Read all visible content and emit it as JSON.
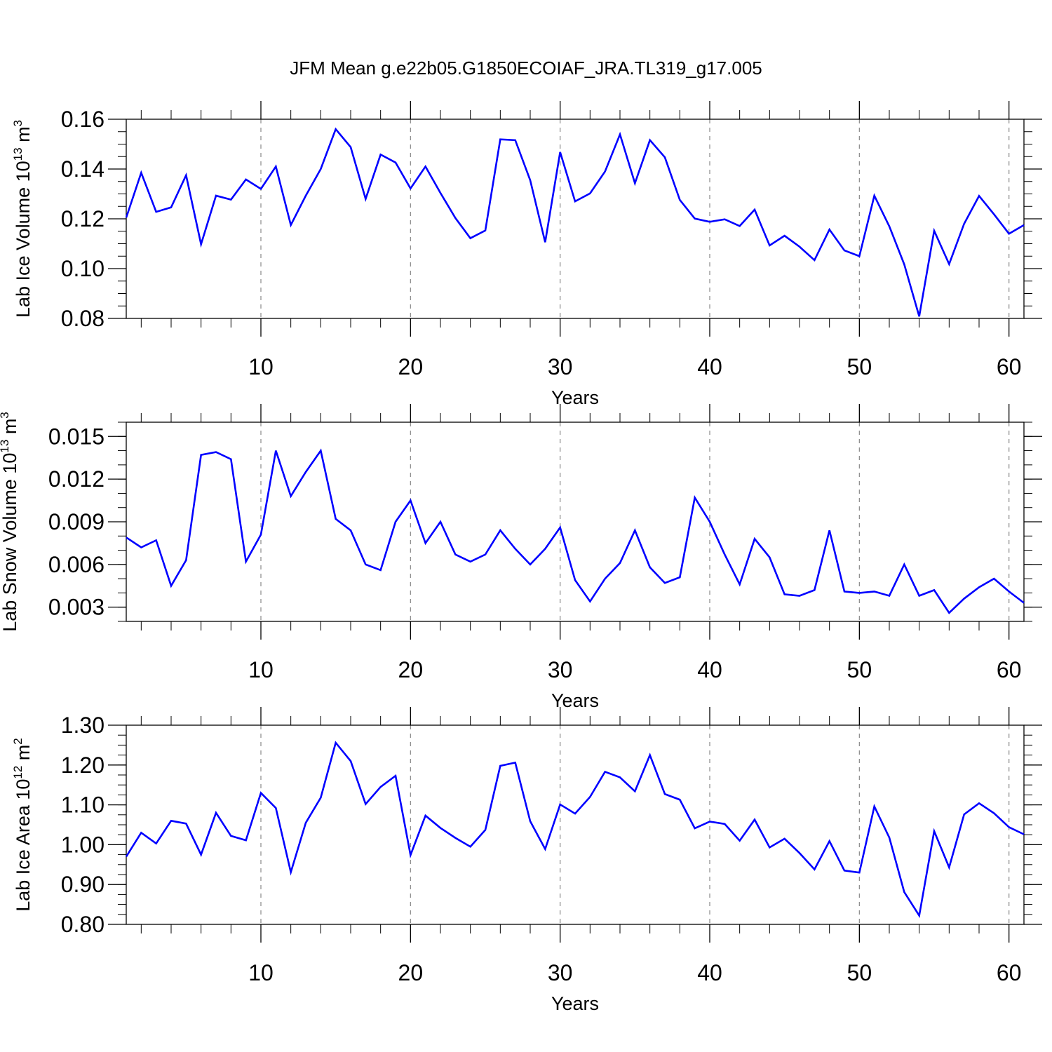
{
  "chart_data": [
    {
      "type": "line",
      "title": "JFM Mean g.e22b05.G1850ECOIAF_JRA.TL319_g17.005",
      "xlabel": "Years",
      "ylabel": {
        "prefix": "Lab Ice Volume 10",
        "exp": "13",
        "unit": "m",
        "unit_exp": "3"
      },
      "xlim": [
        1,
        61
      ],
      "ylim": [
        0.08,
        0.16
      ],
      "x_ticks": [
        10,
        20,
        30,
        40,
        50,
        60
      ],
      "x_tick_labels": [
        "10",
        "20",
        "30",
        "40",
        "50",
        "60"
      ],
      "y_ticks": [
        0.08,
        0.1,
        0.12,
        0.14,
        0.16
      ],
      "y_tick_labels": [
        "0.08",
        "0.10",
        "0.12",
        "0.14",
        "0.16"
      ],
      "y_minor_step": 0.005,
      "grid": "vertical dashed at major x ticks",
      "line_color": "#0000ff",
      "x": [
        1,
        2,
        3,
        4,
        5,
        6,
        7,
        8,
        9,
        10,
        11,
        12,
        13,
        14,
        15,
        16,
        17,
        18,
        19,
        20,
        21,
        22,
        23,
        24,
        25,
        26,
        27,
        28,
        29,
        30,
        31,
        32,
        33,
        34,
        35,
        36,
        37,
        38,
        39,
        40,
        41,
        42,
        43,
        44,
        45,
        46,
        47,
        48,
        49,
        50,
        51,
        52,
        53,
        54,
        55,
        56,
        57,
        58,
        59,
        60,
        61
      ],
      "values": [
        0.1205,
        0.1385,
        0.1228,
        0.1246,
        0.1375,
        0.1098,
        0.1293,
        0.1277,
        0.1358,
        0.132,
        0.141,
        0.1175,
        0.1293,
        0.14,
        0.156,
        0.1488,
        0.128,
        0.1458,
        0.1426,
        0.1322,
        0.141,
        0.1304,
        0.1203,
        0.1122,
        0.1153,
        0.1519,
        0.1516,
        0.1355,
        0.1106,
        0.1468,
        0.127,
        0.1302,
        0.139,
        0.1539,
        0.1343,
        0.1516,
        0.1447,
        0.1276,
        0.1201,
        0.1188,
        0.1198,
        0.1171,
        0.1237,
        0.1093,
        0.1132,
        0.1088,
        0.1034,
        0.1157,
        0.1073,
        0.105,
        0.1293,
        0.117,
        0.1017,
        0.0808,
        0.1152,
        0.1018,
        0.118,
        0.1292,
        0.1218,
        0.114,
        0.1175
      ]
    },
    {
      "type": "line",
      "title": "",
      "xlabel": "Years",
      "ylabel": {
        "prefix": "Lab Snow Volume 10",
        "exp": "13",
        "unit": "m",
        "unit_exp": "3"
      },
      "xlim": [
        1,
        61
      ],
      "ylim": [
        0.002,
        0.016
      ],
      "x_ticks": [
        10,
        20,
        30,
        40,
        50,
        60
      ],
      "x_tick_labels": [
        "10",
        "20",
        "30",
        "40",
        "50",
        "60"
      ],
      "y_ticks": [
        0.003,
        0.006,
        0.009,
        0.012,
        0.015
      ],
      "y_tick_labels": [
        "0.003",
        "0.006",
        "0.009",
        "0.012",
        "0.015"
      ],
      "y_minor_step": 0.001,
      "grid": "vertical dashed at major x ticks",
      "line_color": "#0000ff",
      "x": [
        1,
        2,
        3,
        4,
        5,
        6,
        7,
        8,
        9,
        10,
        11,
        12,
        13,
        14,
        15,
        16,
        17,
        18,
        19,
        20,
        21,
        22,
        23,
        24,
        25,
        26,
        27,
        28,
        29,
        30,
        31,
        32,
        33,
        34,
        35,
        36,
        37,
        38,
        39,
        40,
        41,
        42,
        43,
        44,
        45,
        46,
        47,
        48,
        49,
        50,
        51,
        52,
        53,
        54,
        55,
        56,
        57,
        58,
        59,
        60,
        61
      ],
      "values": [
        0.0079,
        0.0072,
        0.0077,
        0.0045,
        0.0063,
        0.0137,
        0.0139,
        0.0134,
        0.0062,
        0.0081,
        0.014,
        0.0108,
        0.0125,
        0.014,
        0.0092,
        0.0084,
        0.006,
        0.0056,
        0.009,
        0.0105,
        0.0075,
        0.009,
        0.0067,
        0.0062,
        0.0067,
        0.0084,
        0.0071,
        0.006,
        0.0071,
        0.0086,
        0.0049,
        0.0034,
        0.005,
        0.0061,
        0.0084,
        0.0058,
        0.0047,
        0.0051,
        0.0107,
        0.009,
        0.0067,
        0.0046,
        0.0078,
        0.0065,
        0.0039,
        0.0038,
        0.0042,
        0.0084,
        0.0041,
        0.004,
        0.0041,
        0.0038,
        0.006,
        0.0038,
        0.0042,
        0.0026,
        0.0036,
        0.0044,
        0.005,
        0.0041,
        0.0033
      ]
    },
    {
      "type": "line",
      "title": "",
      "xlabel": "Years",
      "ylabel": {
        "prefix": "Lab Ice Area 10",
        "exp": "12",
        "unit": "m",
        "unit_exp": "2"
      },
      "xlim": [
        1,
        61
      ],
      "ylim": [
        0.8,
        1.3
      ],
      "x_ticks": [
        10,
        20,
        30,
        40,
        50,
        60
      ],
      "x_tick_labels": [
        "10",
        "20",
        "30",
        "40",
        "50",
        "60"
      ],
      "y_ticks": [
        0.8,
        0.9,
        1.0,
        1.1,
        1.2,
        1.3
      ],
      "y_tick_labels": [
        "0.80",
        "0.90",
        "1.00",
        "1.10",
        "1.20",
        "1.30"
      ],
      "y_minor_step": 0.025,
      "grid": "vertical dashed at major x ticks",
      "line_color": "#0000ff",
      "x": [
        1,
        2,
        3,
        4,
        5,
        6,
        7,
        8,
        9,
        10,
        11,
        12,
        13,
        14,
        15,
        16,
        17,
        18,
        19,
        20,
        21,
        22,
        23,
        24,
        25,
        26,
        27,
        28,
        29,
        30,
        31,
        32,
        33,
        34,
        35,
        36,
        37,
        38,
        39,
        40,
        41,
        42,
        43,
        44,
        45,
        46,
        47,
        48,
        49,
        50,
        51,
        52,
        53,
        54,
        55,
        56,
        57,
        58,
        59,
        60,
        61
      ],
      "values": [
        0.97,
        1.03,
        1.003,
        1.06,
        1.053,
        0.975,
        1.08,
        1.022,
        1.011,
        1.13,
        1.092,
        0.931,
        1.055,
        1.118,
        1.256,
        1.21,
        1.102,
        1.145,
        1.173,
        0.974,
        1.073,
        1.042,
        1.017,
        0.995,
        1.037,
        1.198,
        1.206,
        1.059,
        0.989,
        1.101,
        1.078,
        1.12,
        1.183,
        1.169,
        1.134,
        1.225,
        1.127,
        1.113,
        1.041,
        1.058,
        1.052,
        1.01,
        1.063,
        0.993,
        1.015,
        0.979,
        0.938,
        1.009,
        0.935,
        0.93,
        1.096,
        1.018,
        0.881,
        0.822,
        1.034,
        0.943,
        1.076,
        1.104,
        1.079,
        1.044,
        1.026
      ]
    }
  ]
}
